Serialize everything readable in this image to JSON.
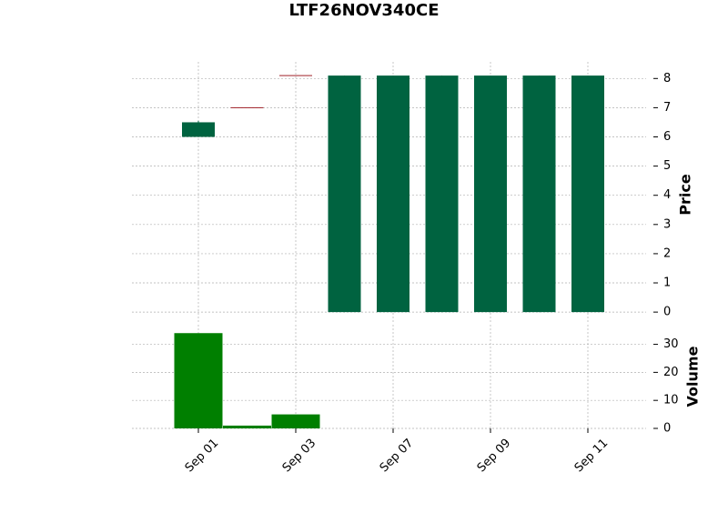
{
  "chart_data": {
    "type": "candlestick",
    "title": "LTF26NOV340CE",
    "categories": [
      "Sep 01",
      null,
      "Sep 03",
      null,
      "Sep 07",
      null,
      "Sep 09",
      null,
      "Sep 11"
    ],
    "open": [
      6.0,
      7.0,
      8.1,
      0,
      0,
      0,
      0,
      0,
      0
    ],
    "high": [
      6.55,
      7.0,
      8.1,
      8.1,
      8.1,
      8.1,
      8.1,
      8.1,
      8.1
    ],
    "low": [
      6.0,
      7.0,
      8.1,
      0,
      0,
      0,
      0,
      0,
      0
    ],
    "close": [
      6.5,
      7.0,
      8.1,
      8.1,
      8.1,
      8.1,
      8.1,
      8.1,
      8.1
    ],
    "volume": [
      34,
      1,
      5,
      0,
      0,
      0,
      0,
      0,
      0
    ],
    "up_color": "#006340",
    "down_color": "#a02128",
    "volume_color": "#007f00",
    "ylabel": "Price",
    "ylim": [
      -0.37,
      8.57
    ],
    "yticks": [
      0,
      1,
      2,
      3,
      4,
      5,
      6,
      7,
      8
    ],
    "volume_label": "Volume",
    "volume_ylim": [
      0,
      37
    ],
    "volume_yticks": [
      0,
      10,
      20,
      30
    ],
    "grid": true
  }
}
